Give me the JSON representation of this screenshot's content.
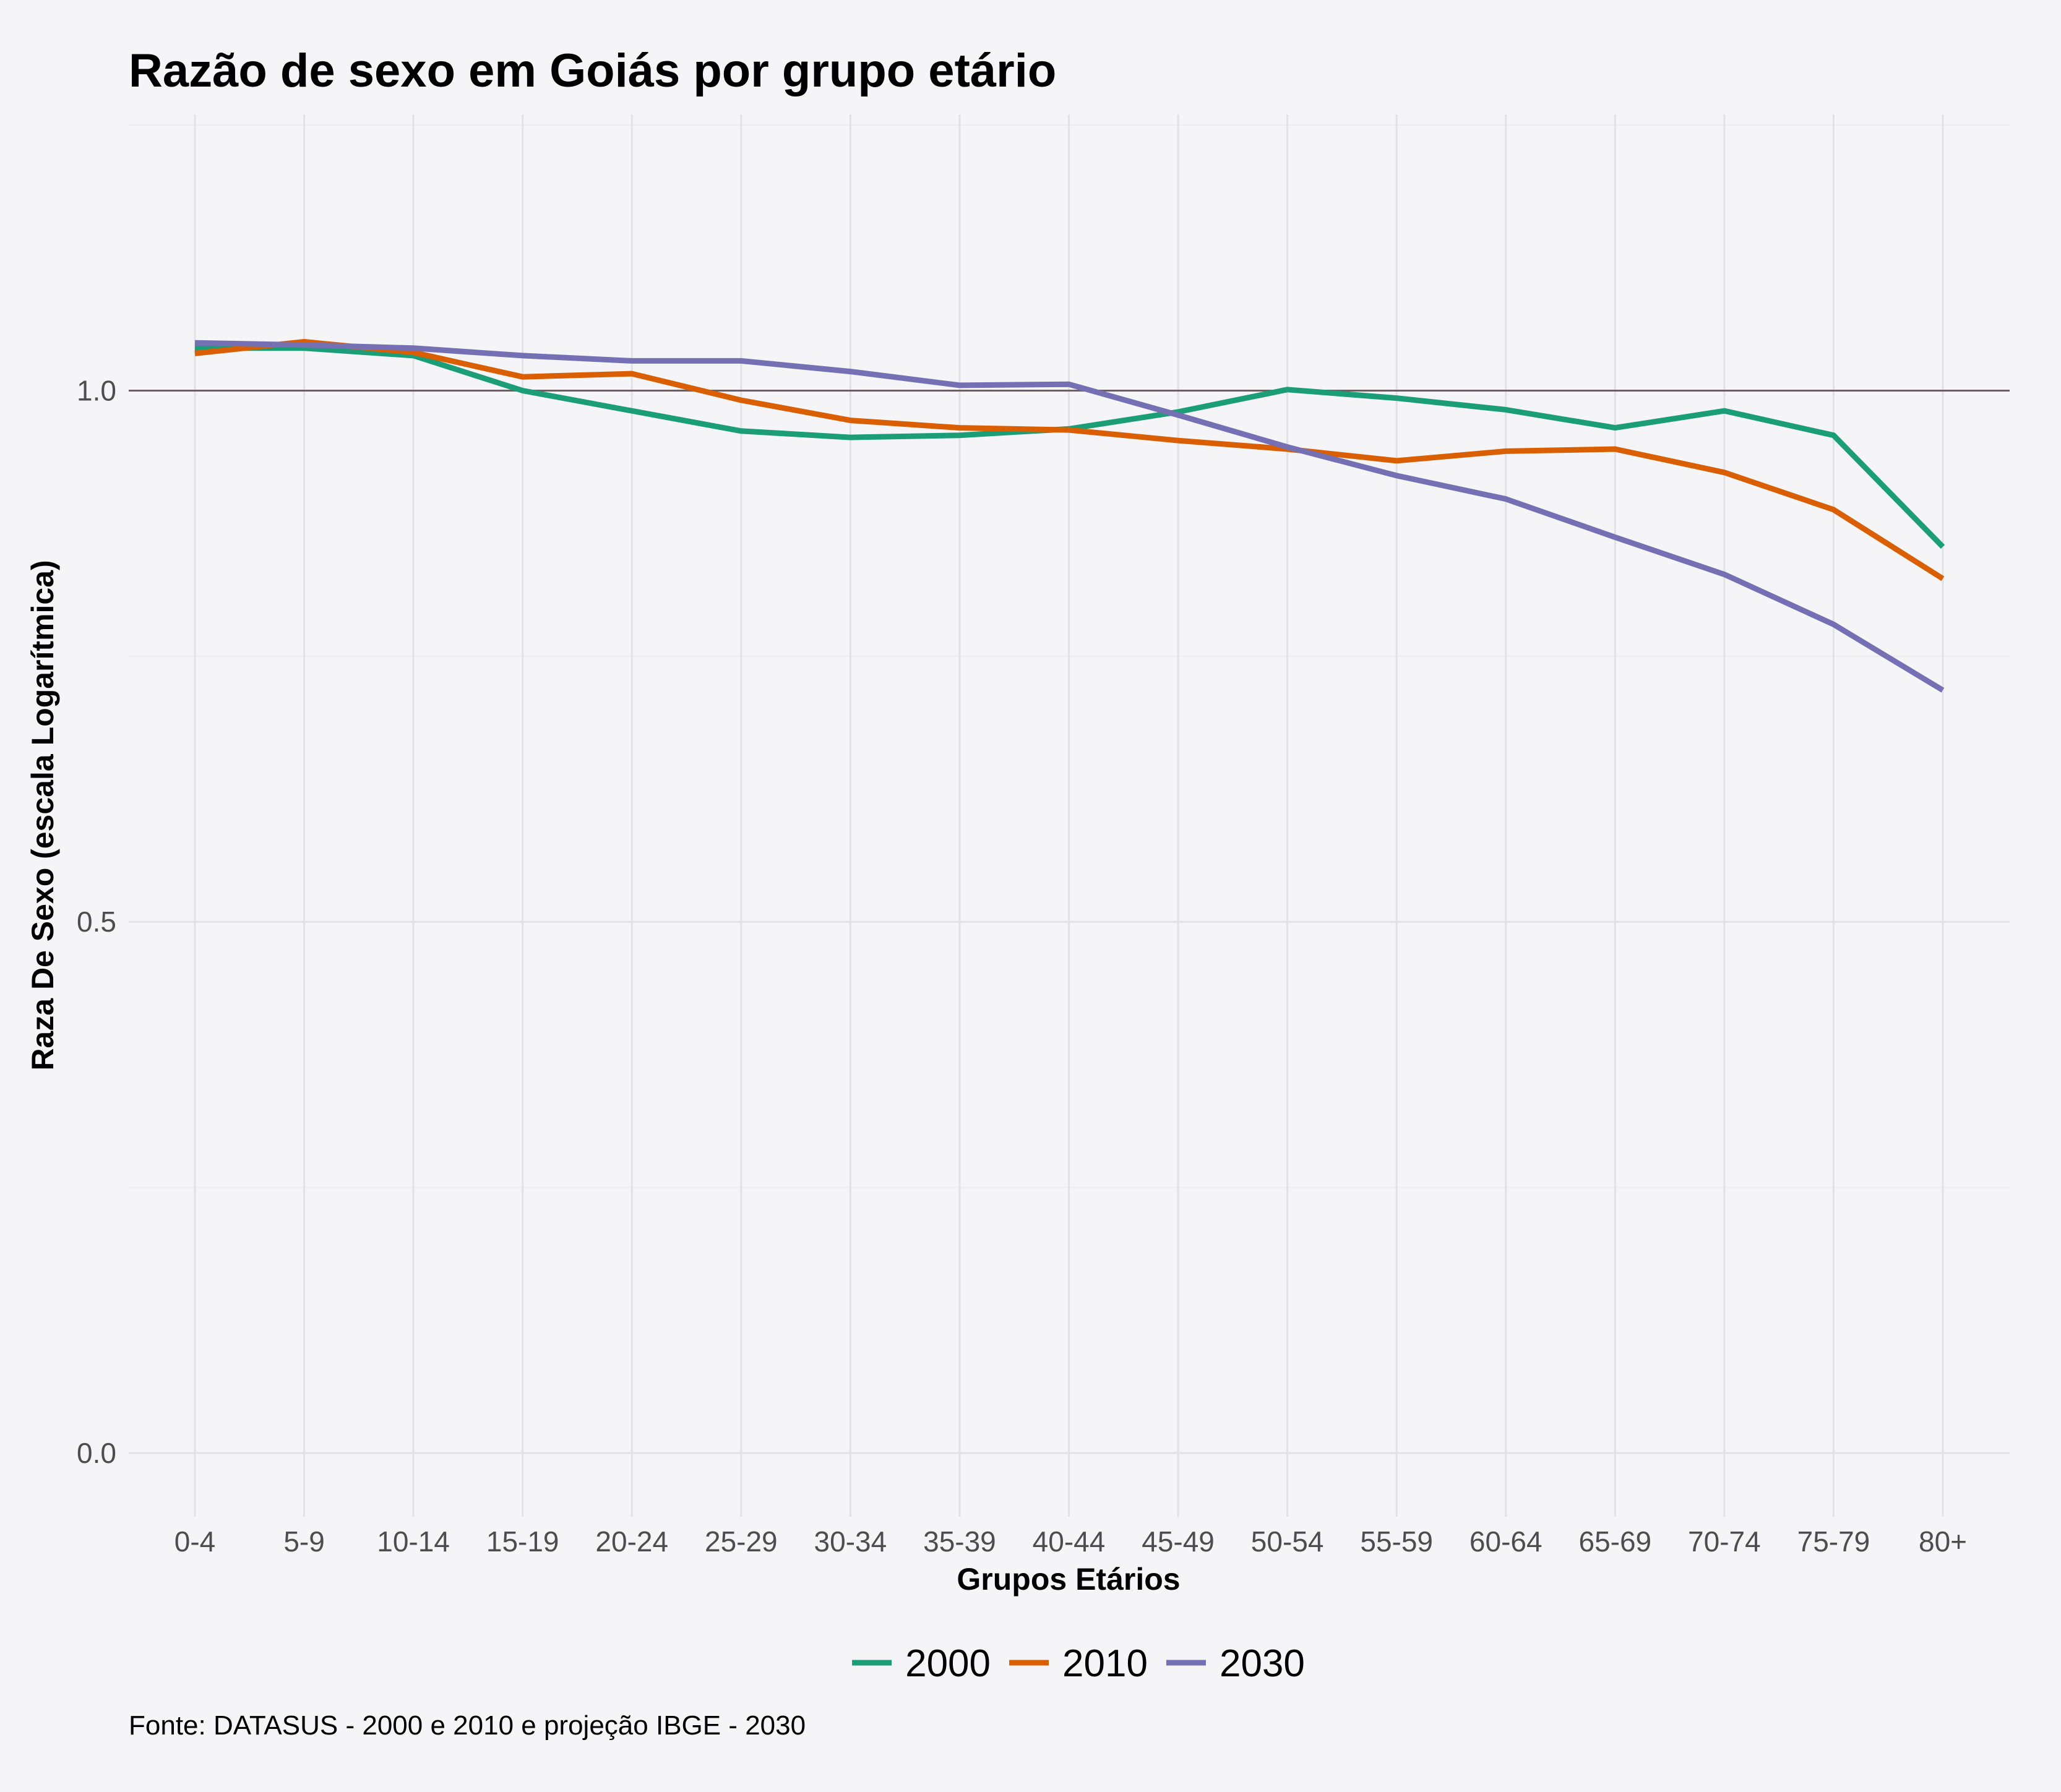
{
  "chart_data": {
    "type": "line",
    "title": "Razão de sexo em Goiás por grupo etário",
    "xlabel": "Grupos Etários",
    "ylabel": "Raza De Sexo (escala Logarítmica)",
    "caption": "Fonte: DATASUS - 2000 e 2010 e projeção IBGE - 2030",
    "categories": [
      "0-4",
      "5-9",
      "10-14",
      "15-19",
      "20-24",
      "25-29",
      "30-34",
      "35-39",
      "40-44",
      "45-49",
      "50-54",
      "55-59",
      "60-64",
      "65-69",
      "70-74",
      "75-79",
      "80+"
    ],
    "ylim": [
      -0.06,
      1.26
    ],
    "yticks": [
      {
        "value": 0.0,
        "label": "0.0"
      },
      {
        "value": 0.5,
        "label": "0.5"
      },
      {
        "value": 1.0,
        "label": "1.0"
      }
    ],
    "yminor": [
      0.25,
      0.75,
      1.25
    ],
    "reference_line": {
      "value": 1.0,
      "color": "#6B5F63"
    },
    "grid": true,
    "legend_position": "bottom",
    "series": [
      {
        "name": "2000",
        "color": "#1B9E77",
        "values": [
          1.04,
          1.04,
          1.033,
          1.0,
          0.981,
          0.962,
          0.956,
          0.958,
          0.964,
          0.98,
          1.001,
          0.993,
          0.982,
          0.965,
          0.981,
          0.958,
          0.853
        ]
      },
      {
        "name": "2010",
        "color": "#D95F02",
        "values": [
          1.035,
          1.046,
          1.036,
          1.013,
          1.016,
          0.991,
          0.972,
          0.965,
          0.963,
          0.953,
          0.945,
          0.934,
          0.943,
          0.945,
          0.923,
          0.888,
          0.823
        ]
      },
      {
        "name": "2030",
        "color": "#7570B3",
        "values": [
          1.045,
          1.043,
          1.04,
          1.033,
          1.028,
          1.028,
          1.018,
          1.005,
          1.006,
          0.977,
          0.947,
          0.92,
          0.898,
          0.862,
          0.827,
          0.78,
          0.718
        ]
      }
    ]
  }
}
